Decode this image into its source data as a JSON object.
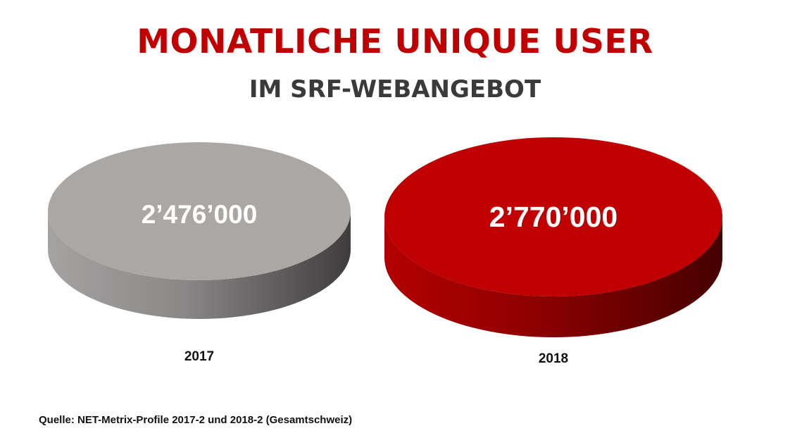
{
  "header": {
    "title": "MONATLICHE UNIQUE USER",
    "subtitle": "IM SRF-WEBANGEBOT"
  },
  "chart_data": {
    "type": "pie",
    "title": "MONATLICHE UNIQUE USER",
    "subtitle": "IM SRF-WEBANGEBOT",
    "categories": [
      "2017",
      "2018"
    ],
    "values": [
      2476000,
      2770000
    ],
    "value_labels": [
      "2’476’000",
      "2’770’000"
    ],
    "colors": [
      "#aaa7a5",
      "#c00000"
    ],
    "grid": false,
    "legend": "none"
  },
  "footer": {
    "source": "Quelle: NET-Metrix-Profile 2017-2 und 2018-2 (Gesamtschweiz)"
  }
}
